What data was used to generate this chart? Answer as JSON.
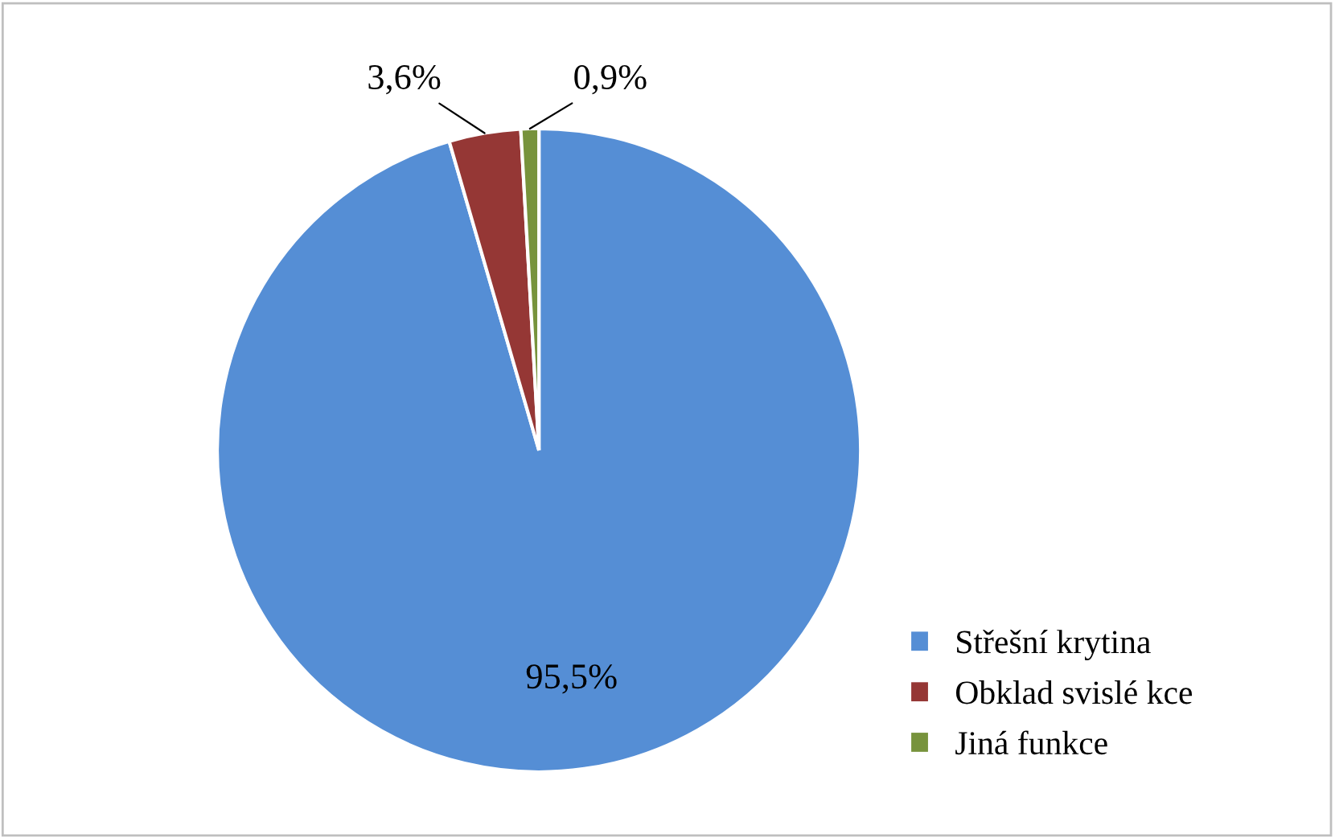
{
  "chart_data": {
    "type": "pie",
    "categories": [
      "Střešní krytina",
      "Obklad svislé kce",
      "Jiná funkce"
    ],
    "values": [
      95.5,
      3.6,
      0.9
    ],
    "value_labels": [
      "95,5%",
      "3,6%",
      "0,9%"
    ],
    "colors": [
      "#558ed5",
      "#953735",
      "#77933c"
    ],
    "legend": "right"
  }
}
